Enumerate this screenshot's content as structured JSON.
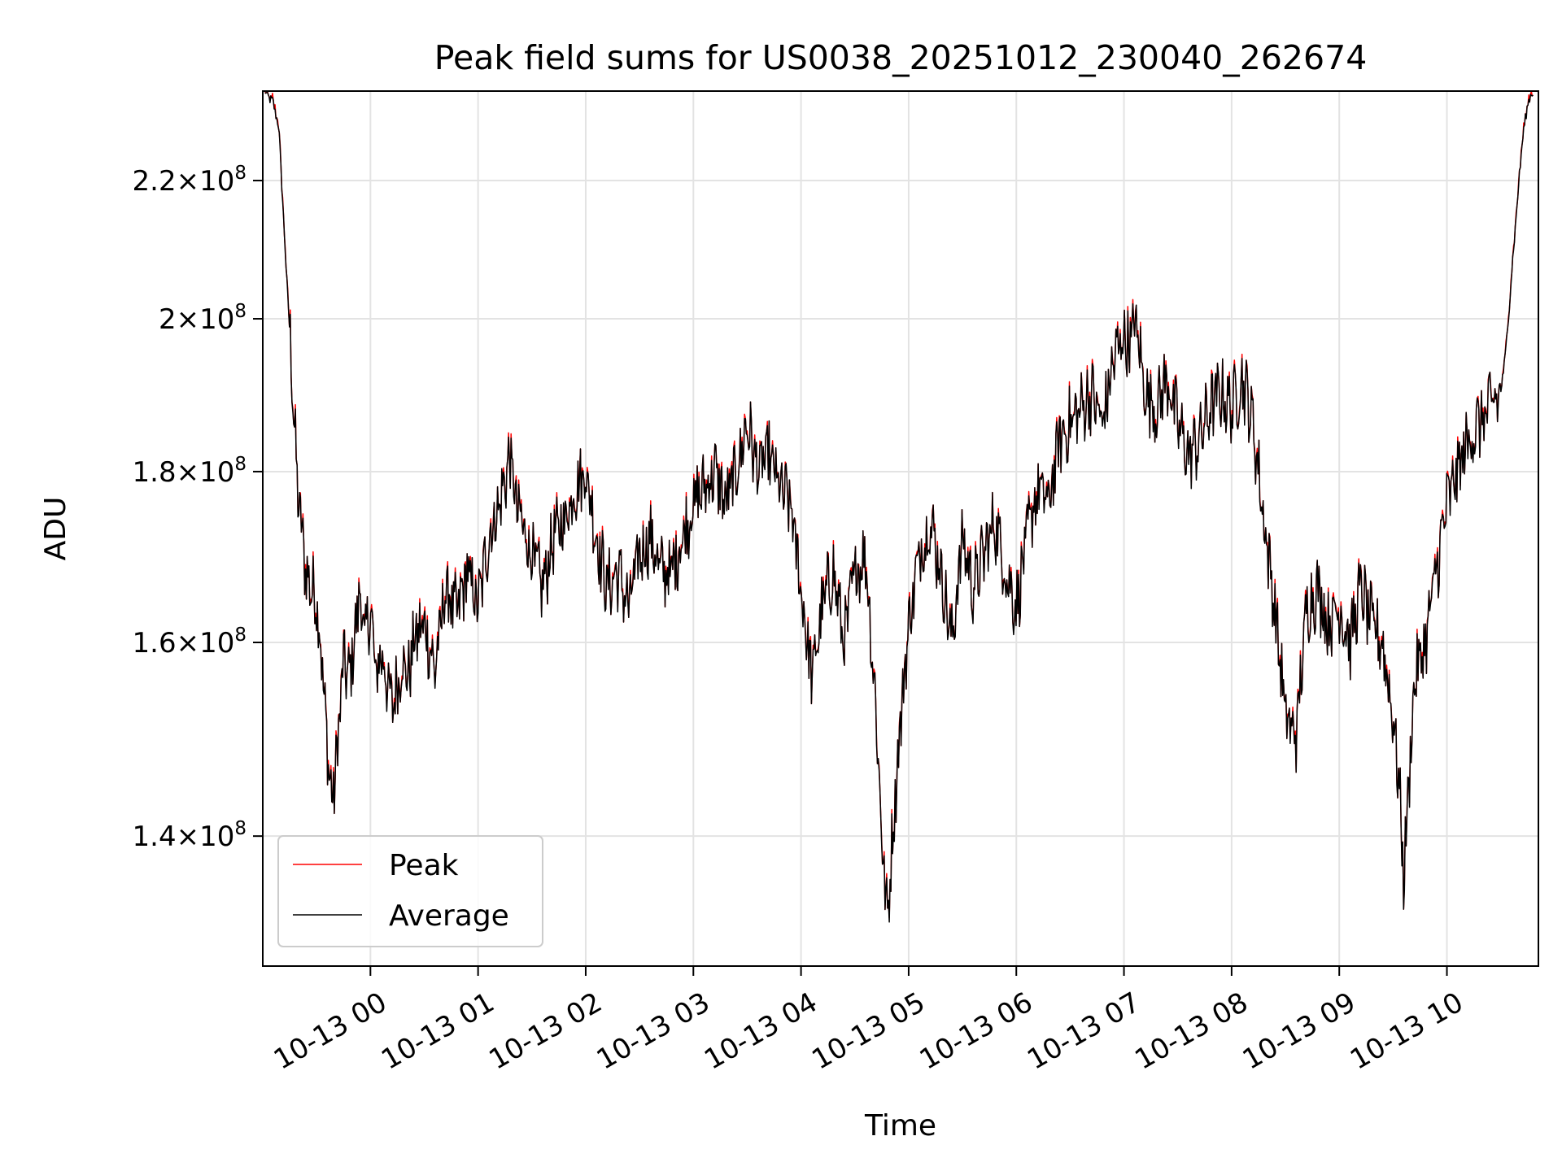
{
  "chart_data": {
    "type": "line",
    "title": "Peak field sums for US0038_20251012_230040_262674",
    "xlabel": "Time",
    "ylabel": "ADU",
    "yscale": "log",
    "ylim": [
      128000000,
      234000000
    ],
    "xlim_hours": [
      -1.0,
      10.85
    ],
    "grid": true,
    "legend_position": "lower-left",
    "x_ticks": [
      {
        "hour": 0,
        "label": "10-13 00"
      },
      {
        "hour": 1,
        "label": "10-13 01"
      },
      {
        "hour": 2,
        "label": "10-13 02"
      },
      {
        "hour": 3,
        "label": "10-13 03"
      },
      {
        "hour": 4,
        "label": "10-13 04"
      },
      {
        "hour": 5,
        "label": "10-13 05"
      },
      {
        "hour": 6,
        "label": "10-13 06"
      },
      {
        "hour": 7,
        "label": "10-13 07"
      },
      {
        "hour": 8,
        "label": "10-13 08"
      },
      {
        "hour": 9,
        "label": "10-13 09"
      },
      {
        "hour": 10,
        "label": "10-13 10"
      }
    ],
    "y_ticks": [
      {
        "value": 140000000,
        "mantissa": "1.4",
        "exponent": "8"
      },
      {
        "value": 160000000,
        "mantissa": "1.6",
        "exponent": "8"
      },
      {
        "value": 180000000,
        "mantissa": "1.8",
        "exponent": "8"
      },
      {
        "value": 200000000,
        "mantissa": "2",
        "exponent": "8"
      },
      {
        "value": 220000000,
        "mantissa": "2.2",
        "exponent": "8"
      }
    ],
    "series": [
      {
        "name": "Peak",
        "color": "#ff0000",
        "offset_fraction": 0.003
      },
      {
        "name": "Average",
        "color": "#000000",
        "offset_fraction": 0.0
      }
    ],
    "anchor_hours": [
      -0.98,
      -0.9,
      -0.85,
      -0.8,
      -0.72,
      -0.68,
      -0.6,
      -0.55,
      -0.5,
      -0.45,
      -0.42,
      -0.38,
      -0.35,
      -0.3,
      -0.25,
      -0.2,
      -0.15,
      -0.1,
      -0.05,
      0.0,
      0.05,
      0.1,
      0.2,
      0.3,
      0.35,
      0.4,
      0.5,
      0.6,
      0.7,
      0.8,
      0.9,
      1.0,
      1.1,
      1.2,
      1.3,
      1.35,
      1.4,
      1.5,
      1.6,
      1.7,
      1.8,
      1.9,
      2.0,
      2.1,
      2.2,
      2.3,
      2.4,
      2.5,
      2.6,
      2.7,
      2.8,
      2.9,
      3.0,
      3.1,
      3.2,
      3.3,
      3.4,
      3.5,
      3.6,
      3.7,
      3.8,
      3.9,
      4.0,
      4.1,
      4.2,
      4.3,
      4.4,
      4.5,
      4.6,
      4.7,
      4.75,
      4.8,
      4.85,
      4.9,
      5.0,
      5.1,
      5.2,
      5.3,
      5.4,
      5.5,
      5.6,
      5.7,
      5.8,
      5.9,
      6.0,
      6.1,
      6.2,
      6.3,
      6.4,
      6.5,
      6.6,
      6.7,
      6.8,
      6.9,
      7.0,
      7.05,
      7.1,
      7.2,
      7.3,
      7.4,
      7.5,
      7.6,
      7.7,
      7.8,
      7.9,
      8.0,
      8.1,
      8.2,
      8.3,
      8.4,
      8.5,
      8.6,
      8.7,
      8.8,
      8.9,
      9.0,
      9.1,
      9.2,
      9.3,
      9.4,
      9.5,
      9.55,
      9.6,
      9.7,
      9.8,
      9.9,
      10.0,
      10.1,
      10.2,
      10.3,
      10.4,
      10.5,
      10.55,
      10.6,
      10.65,
      10.7,
      10.75,
      10.8
    ],
    "average_values": [
      234000000,
      232000000,
      228000000,
      212000000,
      190000000,
      178000000,
      168000000,
      166000000,
      165000000,
      158000000,
      152000000,
      146000000,
      143000000,
      150000000,
      158000000,
      156000000,
      160000000,
      166000000,
      160000000,
      164000000,
      156000000,
      159000000,
      153000000,
      158000000,
      156000000,
      160000000,
      162000000,
      157000000,
      166000000,
      163000000,
      168000000,
      164000000,
      172000000,
      176000000,
      182000000,
      176000000,
      174000000,
      170000000,
      166000000,
      172000000,
      174000000,
      178000000,
      180000000,
      172000000,
      166000000,
      168000000,
      164000000,
      170000000,
      172000000,
      168000000,
      168000000,
      172000000,
      176000000,
      178000000,
      180000000,
      176000000,
      180000000,
      186000000,
      180000000,
      182000000,
      178000000,
      176000000,
      166000000,
      156000000,
      164000000,
      168000000,
      160000000,
      168000000,
      170000000,
      152000000,
      140000000,
      132000000,
      140000000,
      148000000,
      162000000,
      170000000,
      174000000,
      168000000,
      160000000,
      172000000,
      166000000,
      170000000,
      174000000,
      168000000,
      164000000,
      172000000,
      178000000,
      176000000,
      184000000,
      186000000,
      188000000,
      190000000,
      186000000,
      194000000,
      198000000,
      196000000,
      200000000,
      190000000,
      188000000,
      192000000,
      186000000,
      182000000,
      184000000,
      188000000,
      190000000,
      188000000,
      192000000,
      186000000,
      174000000,
      164000000,
      152000000,
      150000000,
      164000000,
      166000000,
      162000000,
      164000000,
      160000000,
      166000000,
      162000000,
      160000000,
      152000000,
      146000000,
      136000000,
      156000000,
      160000000,
      168000000,
      176000000,
      180000000,
      184000000,
      186000000,
      188000000,
      190000000,
      196000000,
      206000000,
      216000000,
      226000000,
      232000000,
      234000000
    ]
  },
  "legend": {
    "peak_label": "Peak",
    "average_label": "Average"
  }
}
